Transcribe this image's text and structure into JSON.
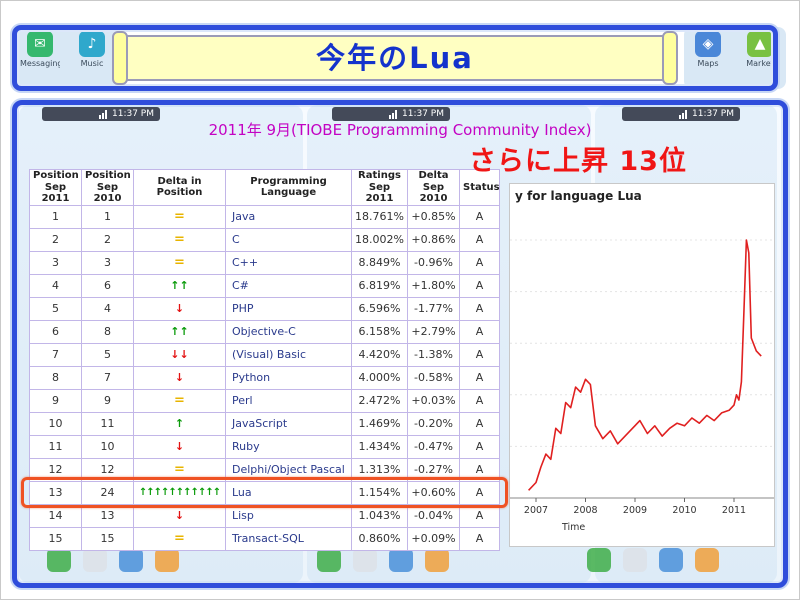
{
  "banner": {
    "title": "今年のLua"
  },
  "panel": {
    "subtitle": "2011年 9月(TIOBE Programming Community Index)",
    "note": "さらに上昇 13位"
  },
  "background": {
    "status_time": "11:37 PM",
    "icon_labels": [
      "Messaging",
      "Music",
      "Maps",
      "Market"
    ]
  },
  "table": {
    "headers": [
      "Position Sep 2011",
      "Position Sep 2010",
      "Delta in Position",
      "Programming Language",
      "Ratings Sep 2011",
      "Delta Sep 2010",
      "Status"
    ],
    "highlight_row_index": 12,
    "rows": [
      [
        "1",
        "1",
        "=",
        "Java",
        "18.761%",
        "+0.85%",
        "A"
      ],
      [
        "2",
        "2",
        "=",
        "C",
        "18.002%",
        "+0.86%",
        "A"
      ],
      [
        "3",
        "3",
        "=",
        "C++",
        "8.849%",
        "-0.96%",
        "A"
      ],
      [
        "4",
        "6",
        "↑↑",
        "C#",
        "6.819%",
        "+1.80%",
        "A"
      ],
      [
        "5",
        "4",
        "↓",
        "PHP",
        "6.596%",
        "-1.77%",
        "A"
      ],
      [
        "6",
        "8",
        "↑↑",
        "Objective-C",
        "6.158%",
        "+2.79%",
        "A"
      ],
      [
        "7",
        "5",
        "↓↓",
        "(Visual) Basic",
        "4.420%",
        "-1.38%",
        "A"
      ],
      [
        "8",
        "7",
        "↓",
        "Python",
        "4.000%",
        "-0.58%",
        "A"
      ],
      [
        "9",
        "9",
        "=",
        "Perl",
        "2.472%",
        "+0.03%",
        "A"
      ],
      [
        "10",
        "11",
        "↑",
        "JavaScript",
        "1.469%",
        "-0.20%",
        "A"
      ],
      [
        "11",
        "10",
        "↓",
        "Ruby",
        "1.434%",
        "-0.47%",
        "A"
      ],
      [
        "12",
        "12",
        "=",
        "Delphi/Object Pascal",
        "1.313%",
        "-0.27%",
        "A"
      ],
      [
        "13",
        "24",
        "↑↑↑↑↑↑↑↑↑↑↑",
        "Lua",
        "1.154%",
        "+0.60%",
        "A"
      ],
      [
        "14",
        "13",
        "↓",
        "Lisp",
        "1.043%",
        "-0.04%",
        "A"
      ],
      [
        "15",
        "15",
        "=",
        "Transact-SQL",
        "0.860%",
        "+0.09%",
        "A"
      ]
    ]
  },
  "chart_data": {
    "type": "line",
    "title": "y for language Lua",
    "xlabel": "Time",
    "x_ticks": [
      2007,
      2008,
      2009,
      2010,
      2011
    ],
    "xlim": [
      2006.8,
      2011.7
    ],
    "ylim": [
      0,
      100
    ],
    "y_axis_note": "y-axis cropped out of view; values normalized 0-100 of visible plot height",
    "legend_position": "none",
    "grid": "faint horizontal",
    "series": [
      {
        "name": "Lua",
        "color": "#e02020",
        "points": [
          [
            2006.85,
            3
          ],
          [
            2007.0,
            6
          ],
          [
            2007.1,
            12
          ],
          [
            2007.2,
            17
          ],
          [
            2007.3,
            15
          ],
          [
            2007.4,
            27
          ],
          [
            2007.5,
            25
          ],
          [
            2007.6,
            37
          ],
          [
            2007.7,
            35
          ],
          [
            2007.8,
            43
          ],
          [
            2007.9,
            41
          ],
          [
            2008.0,
            46
          ],
          [
            2008.1,
            44
          ],
          [
            2008.2,
            28
          ],
          [
            2008.35,
            23
          ],
          [
            2008.5,
            26
          ],
          [
            2008.65,
            21
          ],
          [
            2008.8,
            24
          ],
          [
            2008.95,
            27
          ],
          [
            2009.1,
            30
          ],
          [
            2009.25,
            25
          ],
          [
            2009.4,
            28
          ],
          [
            2009.55,
            24
          ],
          [
            2009.7,
            27
          ],
          [
            2009.85,
            29
          ],
          [
            2010.0,
            28
          ],
          [
            2010.15,
            31
          ],
          [
            2010.3,
            29
          ],
          [
            2010.45,
            32
          ],
          [
            2010.6,
            30
          ],
          [
            2010.75,
            33
          ],
          [
            2010.9,
            34
          ],
          [
            2011.0,
            36
          ],
          [
            2011.05,
            40
          ],
          [
            2011.1,
            38
          ],
          [
            2011.15,
            45
          ],
          [
            2011.2,
            72
          ],
          [
            2011.25,
            100
          ],
          [
            2011.3,
            95
          ],
          [
            2011.35,
            62
          ],
          [
            2011.45,
            57
          ],
          [
            2011.55,
            55
          ]
        ]
      }
    ]
  }
}
